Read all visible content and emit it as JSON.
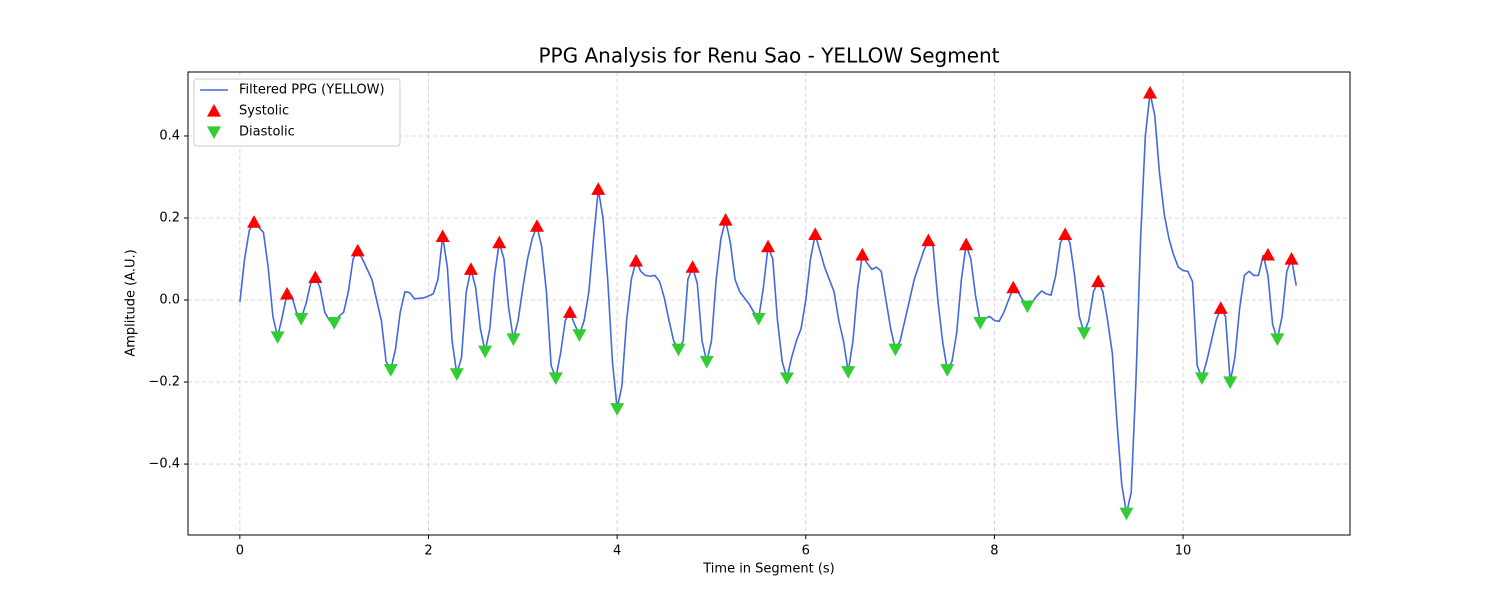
{
  "chart_data": {
    "type": "line",
    "title": "PPG Analysis for Renu Sao - YELLOW Segment",
    "x_label": "Time in Segment (s)",
    "y_label": "Amplitude (A.U.)",
    "xlim": [
      -0.55,
      11.77
    ],
    "ylim": [
      -0.573,
      0.556
    ],
    "xticks": [
      0,
      2,
      4,
      6,
      8,
      10
    ],
    "yticks": [
      {
        "value": -0.4,
        "label": "−0.4"
      },
      {
        "value": -0.2,
        "label": "−0.2"
      },
      {
        "value": 0,
        "label": "0.0"
      },
      0.2,
      0.4
    ],
    "grid": true,
    "legend": "upper-left",
    "series": [
      {
        "name": "Filtered PPG (YELLOW)",
        "kind": "line",
        "color": "#4169e1",
        "x": [
          0,
          0.05,
          0.1,
          0.15,
          0.25,
          0.3,
          0.35,
          0.4,
          0.45,
          0.5,
          0.55,
          0.6,
          0.65,
          0.7,
          0.75,
          0.8,
          0.85,
          0.9,
          0.95,
          1.0,
          1.05,
          1.1,
          1.15,
          1.2,
          1.25,
          1.3,
          1.4,
          1.5,
          1.55,
          1.6,
          1.65,
          1.7,
          1.75,
          1.8,
          1.85,
          1.95,
          2.05,
          2.1,
          2.15,
          2.2,
          2.25,
          2.3,
          2.35,
          2.4,
          2.45,
          2.5,
          2.55,
          2.6,
          2.65,
          2.7,
          2.75,
          2.8,
          2.85,
          2.9,
          2.95,
          3.0,
          3.05,
          3.1,
          3.15,
          3.2,
          3.25,
          3.3,
          3.35,
          3.4,
          3.45,
          3.5,
          3.55,
          3.6,
          3.65,
          3.7,
          3.75,
          3.8,
          3.85,
          3.9,
          3.95,
          4.0,
          4.05,
          4.1,
          4.15,
          4.2,
          4.25,
          4.3,
          4.35,
          4.4,
          4.45,
          4.5,
          4.55,
          4.6,
          4.65,
          4.7,
          4.75,
          4.8,
          4.85,
          4.9,
          4.95,
          5.0,
          5.05,
          5.1,
          5.15,
          5.2,
          5.25,
          5.3,
          5.35,
          5.4,
          5.45,
          5.5,
          5.55,
          5.6,
          5.65,
          5.7,
          5.75,
          5.8,
          5.85,
          5.9,
          5.95,
          6.0,
          6.05,
          6.1,
          6.15,
          6.2,
          6.3,
          6.35,
          6.4,
          6.45,
          6.5,
          6.55,
          6.6,
          6.65,
          6.7,
          6.75,
          6.8,
          6.85,
          6.9,
          6.95,
          7.0,
          7.05,
          7.1,
          7.15,
          7.25,
          7.3,
          7.35,
          7.4,
          7.45,
          7.5,
          7.55,
          7.6,
          7.65,
          7.7,
          7.75,
          7.8,
          7.85,
          7.9,
          7.95,
          8.0,
          8.05,
          8.1,
          8.15,
          8.2,
          8.25,
          8.3,
          8.35,
          8.4,
          8.45,
          8.5,
          8.55,
          8.6,
          8.65,
          8.7,
          8.75,
          8.8,
          8.85,
          8.9,
          8.95,
          9.0,
          9.05,
          9.1,
          9.15,
          9.2,
          9.25,
          9.3,
          9.35,
          9.4,
          9.45,
          9.5,
          9.55,
          9.6,
          9.65,
          9.7,
          9.75,
          9.8,
          9.85,
          9.9,
          9.95,
          10.0,
          10.05,
          10.1,
          10.15,
          10.2,
          10.25,
          10.3,
          10.35,
          10.4,
          10.45,
          10.5,
          10.55,
          10.6,
          10.65,
          10.7,
          10.75,
          10.8,
          10.85,
          10.9,
          10.95,
          11.0,
          11.05,
          11.1,
          11.15,
          11.2
        ],
        "values": [
          -0.005,
          0.1,
          0.17,
          0.19,
          0.165,
          0.08,
          -0.04,
          -0.09,
          -0.04,
          0.015,
          0.01,
          -0.03,
          -0.045,
          -0.01,
          0.04,
          0.055,
          0.03,
          -0.03,
          -0.05,
          -0.055,
          -0.04,
          -0.03,
          0.02,
          0.1,
          0.12,
          0.1,
          0.05,
          -0.05,
          -0.15,
          -0.17,
          -0.12,
          -0.03,
          0.02,
          0.018,
          0.003,
          0.005,
          0.015,
          0.05,
          0.155,
          0.08,
          -0.1,
          -0.18,
          -0.14,
          0.02,
          0.075,
          0.03,
          -0.07,
          -0.125,
          -0.07,
          0.06,
          0.14,
          0.1,
          -0.02,
          -0.095,
          -0.05,
          0.03,
          0.1,
          0.15,
          0.18,
          0.13,
          0.02,
          -0.16,
          -0.19,
          -0.13,
          -0.05,
          -0.03,
          -0.06,
          -0.085,
          -0.05,
          0.02,
          0.15,
          0.27,
          0.2,
          0.05,
          -0.15,
          -0.265,
          -0.21,
          -0.05,
          0.05,
          0.095,
          0.07,
          0.06,
          0.058,
          0.06,
          0.045,
          0.005,
          -0.05,
          -0.1,
          -0.12,
          -0.1,
          0.05,
          0.08,
          0.04,
          -0.1,
          -0.15,
          -0.1,
          0.05,
          0.15,
          0.195,
          0.14,
          0.05,
          0.02,
          0.005,
          -0.01,
          -0.03,
          -0.045,
          0.03,
          0.13,
          0.1,
          -0.05,
          -0.15,
          -0.19,
          -0.14,
          -0.1,
          -0.07,
          0.0,
          0.1,
          0.16,
          0.12,
          0.08,
          0.02,
          -0.05,
          -0.1,
          -0.175,
          -0.1,
          0.03,
          0.11,
          0.09,
          0.075,
          0.08,
          0.07,
          0.0,
          -0.07,
          -0.12,
          -0.1,
          -0.05,
          0.0,
          0.05,
          0.12,
          0.145,
          0.13,
          0.0,
          -0.1,
          -0.17,
          -0.15,
          -0.08,
          0.05,
          0.135,
          0.1,
          0.01,
          -0.055,
          -0.045,
          -0.04,
          -0.05,
          -0.052,
          -0.03,
          0.0,
          0.03,
          0.02,
          0.0,
          -0.015,
          -0.005,
          0.01,
          0.022,
          0.015,
          0.012,
          0.06,
          0.14,
          0.16,
          0.14,
          0.06,
          -0.04,
          -0.08,
          -0.05,
          0.02,
          0.045,
          0.02,
          -0.05,
          -0.13,
          -0.3,
          -0.45,
          -0.52,
          -0.47,
          -0.2,
          0.15,
          0.4,
          0.505,
          0.45,
          0.31,
          0.21,
          0.15,
          0.11,
          0.08,
          0.072,
          0.07,
          0.045,
          -0.16,
          -0.19,
          -0.15,
          -0.1,
          -0.05,
          -0.02,
          -0.04,
          -0.2,
          -0.14,
          -0.02,
          0.06,
          0.07,
          0.06,
          0.06,
          0.11,
          0.06,
          -0.06,
          -0.095,
          -0.04,
          0.07,
          0.1,
          0.035
        ]
      },
      {
        "name": "Systolic",
        "kind": "scatter",
        "marker": "up",
        "color": "#ff0000",
        "x": [
          0.15,
          0.5,
          0.8,
          1.25,
          2.15,
          2.45,
          2.75,
          3.15,
          3.5,
          3.8,
          4.2,
          4.8,
          5.15,
          5.6,
          6.1,
          6.6,
          7.3,
          7.7,
          8.2,
          8.75,
          9.1,
          9.65,
          10.4,
          10.9,
          11.15
        ],
        "values": [
          0.19,
          0.015,
          0.055,
          0.12,
          0.155,
          0.075,
          0.14,
          0.18,
          -0.03,
          0.27,
          0.095,
          0.08,
          0.195,
          0.13,
          0.16,
          0.11,
          0.145,
          0.135,
          0.03,
          0.16,
          0.045,
          0.505,
          -0.02,
          0.11,
          0.1
        ]
      },
      {
        "name": "Diastolic",
        "kind": "scatter",
        "marker": "down",
        "color": "#32cd32",
        "x": [
          0.4,
          0.65,
          1.0,
          1.6,
          2.3,
          2.6,
          2.9,
          3.35,
          3.6,
          4.0,
          4.65,
          4.95,
          5.5,
          5.8,
          6.45,
          6.95,
          7.5,
          7.85,
          8.35,
          8.95,
          9.4,
          10.2,
          10.5,
          11.0
        ],
        "values": [
          -0.09,
          -0.045,
          -0.055,
          -0.17,
          -0.18,
          -0.125,
          -0.095,
          -0.19,
          -0.085,
          -0.265,
          -0.12,
          -0.15,
          -0.045,
          -0.19,
          -0.175,
          -0.12,
          -0.17,
          -0.055,
          -0.015,
          -0.08,
          -0.52,
          -0.19,
          -0.2,
          -0.095
        ]
      }
    ]
  }
}
